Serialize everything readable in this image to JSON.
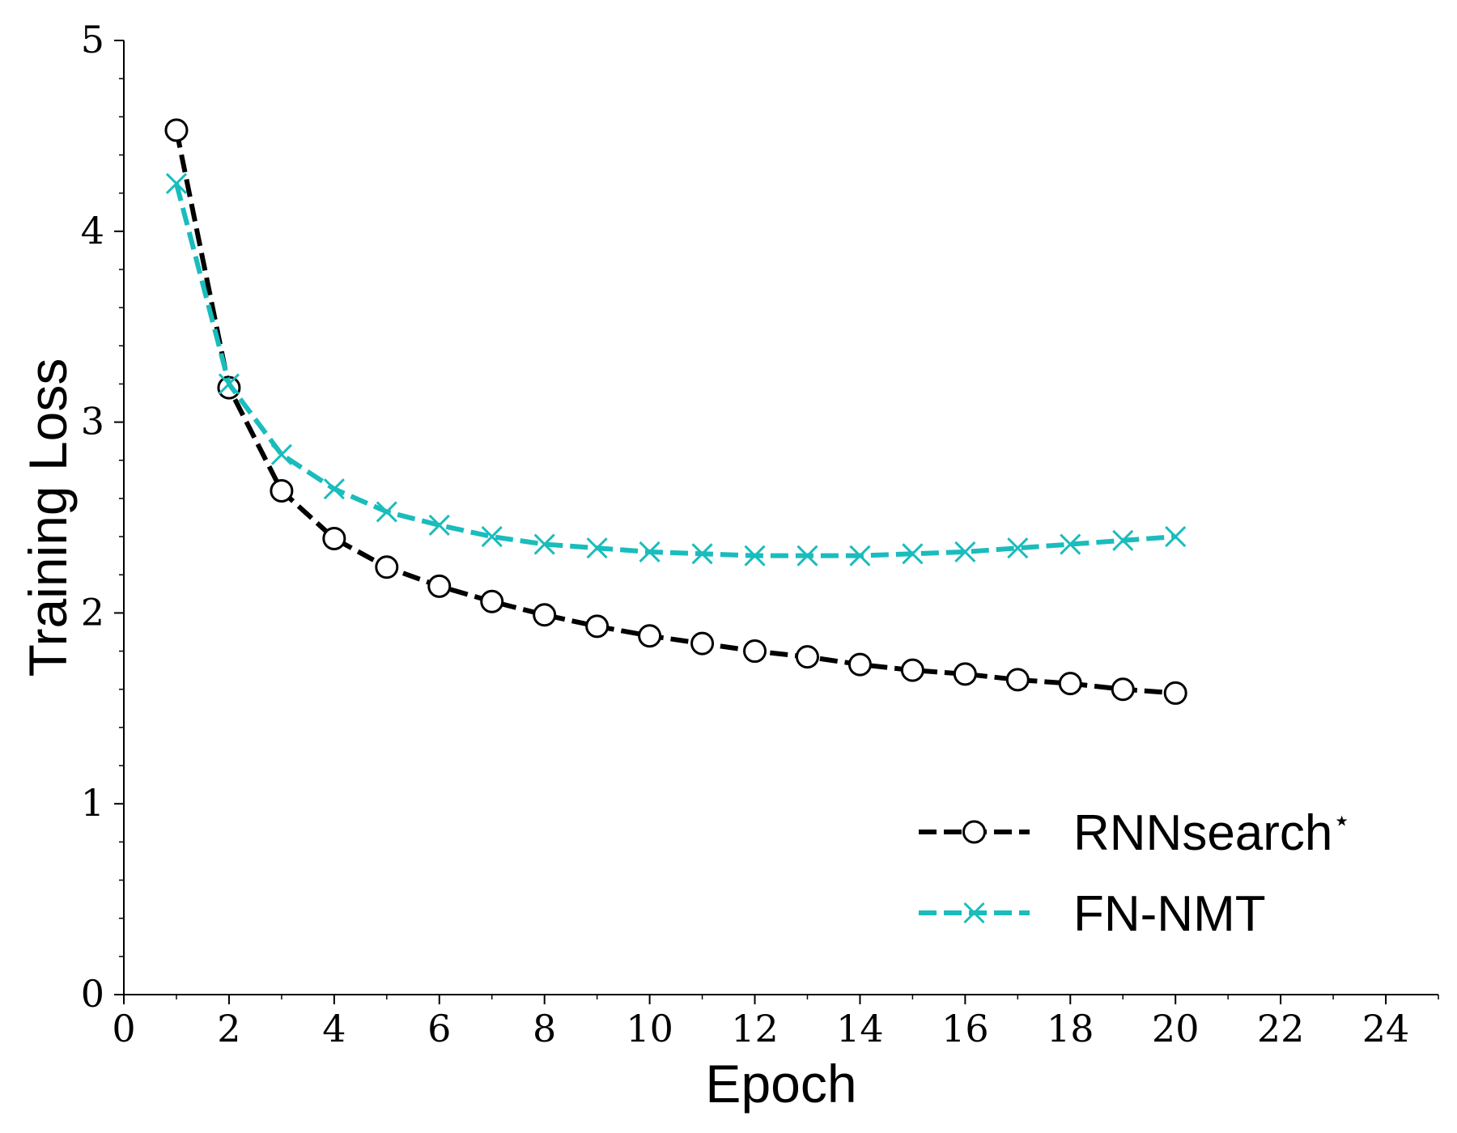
{
  "chart_data": {
    "type": "line",
    "xlabel": "Epoch",
    "ylabel": "Training Loss",
    "xlim": [
      0,
      25
    ],
    "ylim": [
      0,
      5
    ],
    "x_major_ticks": [
      0,
      2,
      4,
      6,
      8,
      10,
      12,
      14,
      16,
      18,
      20,
      22,
      24
    ],
    "x_minor_ticks": [
      1,
      3,
      5,
      7,
      9,
      11,
      13,
      15,
      17,
      19,
      21,
      23,
      25
    ],
    "y_major_ticks": [
      0,
      1,
      2,
      3,
      4,
      5
    ],
    "y_minor_step": 0.2,
    "grid": false,
    "legend_position": "lower-right",
    "x": [
      1,
      2,
      3,
      4,
      5,
      6,
      7,
      8,
      9,
      10,
      11,
      12,
      13,
      14,
      15,
      16,
      17,
      18,
      19,
      20
    ],
    "series": [
      {
        "name": "RNNsearch*",
        "color": "#000000",
        "marker": "open-circle",
        "linestyle": "dashed",
        "values": [
          4.53,
          3.18,
          2.64,
          2.39,
          2.24,
          2.14,
          2.06,
          1.99,
          1.93,
          1.88,
          1.84,
          1.8,
          1.77,
          1.73,
          1.7,
          1.68,
          1.65,
          1.63,
          1.6,
          1.58
        ]
      },
      {
        "name": "FN-NMT",
        "color": "#1ABCBC",
        "marker": "x",
        "linestyle": "dashed",
        "values": [
          4.25,
          3.2,
          2.83,
          2.65,
          2.53,
          2.46,
          2.4,
          2.36,
          2.34,
          2.32,
          2.31,
          2.3,
          2.3,
          2.3,
          2.31,
          2.32,
          2.34,
          2.36,
          2.38,
          2.4
        ]
      }
    ]
  }
}
